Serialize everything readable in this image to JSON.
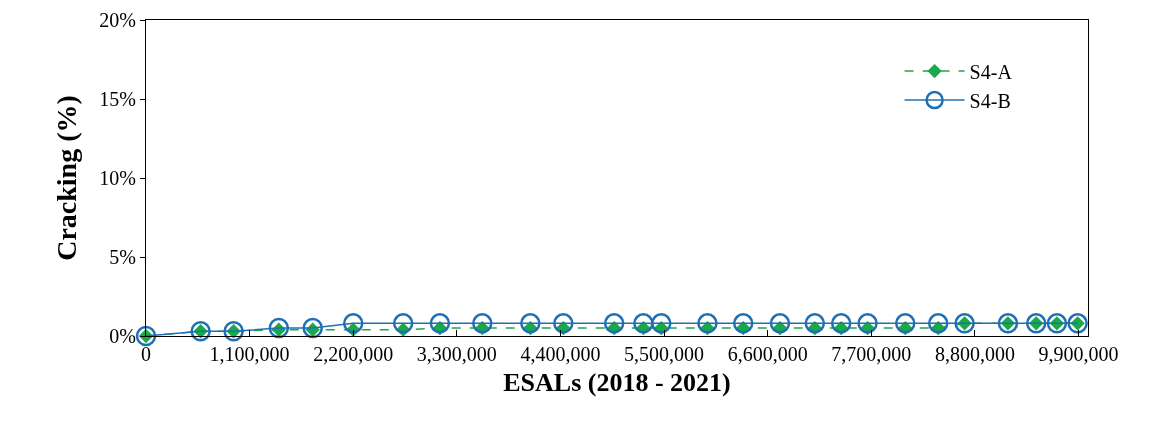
{
  "chart_data": {
    "type": "line",
    "xlabel": "ESALs (2018 - 2021)",
    "ylabel": "Cracking (%)",
    "x": [
      0,
      580000,
      930000,
      1410000,
      1770000,
      2200000,
      2730000,
      3120000,
      3570000,
      4080000,
      4430000,
      4970000,
      5280000,
      5470000,
      5960000,
      6340000,
      6730000,
      7100000,
      7380000,
      7660000,
      8060000,
      8410000,
      8690000,
      9150000,
      9450000,
      9670000,
      9890000
    ],
    "series": [
      {
        "name": "S4-A",
        "color": "#1aa84a",
        "marker": "diamond",
        "line_style": "dashed",
        "values": [
          0,
          0.3,
          0.3,
          0.4,
          0.4,
          0.4,
          0.4,
          0.5,
          0.5,
          0.5,
          0.5,
          0.5,
          0.5,
          0.5,
          0.5,
          0.5,
          0.5,
          0.5,
          0.5,
          0.5,
          0.5,
          0.5,
          0.8,
          0.8,
          0.8,
          0.8,
          0.8
        ]
      },
      {
        "name": "S4-B",
        "color": "#1f6fb5",
        "marker": "circle",
        "line_style": "solid",
        "values": [
          0,
          0.3,
          0.3,
          0.5,
          0.5,
          0.8,
          0.8,
          0.8,
          0.8,
          0.8,
          0.8,
          0.8,
          0.8,
          0.8,
          0.8,
          0.8,
          0.8,
          0.8,
          0.8,
          0.8,
          0.8,
          0.8,
          0.8,
          0.8,
          0.8,
          0.8,
          0.8
        ]
      }
    ],
    "xlim": [
      0,
      10000000
    ],
    "xticks": [
      0,
      {
        "value": 1100000,
        "label": "1,100,000"
      },
      {
        "value": 2200000,
        "label": "2,200,000"
      },
      {
        "value": 3300000,
        "label": "3,300,000"
      },
      {
        "value": 4400000,
        "label": "4,400,000"
      },
      {
        "value": 5500000,
        "label": "5,500,000"
      },
      {
        "value": 6600000,
        "label": "6,600,000"
      },
      {
        "value": 7700000,
        "label": "7,700,000"
      },
      {
        "value": 8800000,
        "label": "8,800,000"
      },
      {
        "value": 9900000,
        "label": "9,900,000"
      }
    ],
    "ylim": [
      0,
      20
    ],
    "yticks": [
      {
        "value": 0,
        "label": "0%"
      },
      {
        "value": 5,
        "label": "5%"
      },
      {
        "value": 10,
        "label": "10%"
      },
      {
        "value": 15,
        "label": "15%"
      },
      {
        "value": 20,
        "label": "20%"
      }
    ],
    "grid": false,
    "legend": "top right"
  }
}
